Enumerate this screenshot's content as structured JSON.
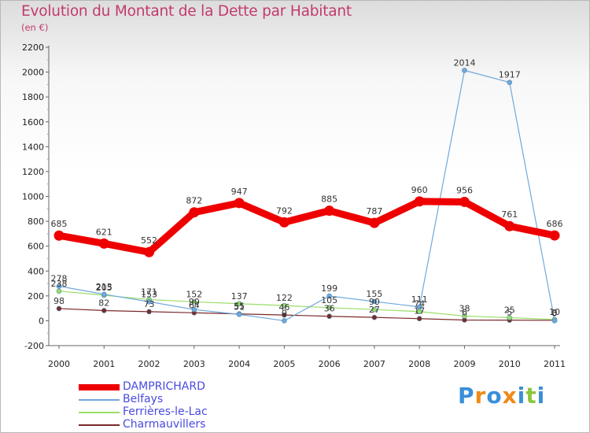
{
  "title": "Evolution du Montant de la Dette par Habitant",
  "subtitle": "(en €)",
  "logo": {
    "letters": [
      "P",
      "r",
      "o",
      "x",
      "i",
      "t",
      "i"
    ],
    "colors": [
      "#3a8fd8",
      "#f08a18",
      "#3a8fd8",
      "#f08a18",
      "#3a8fd8",
      "#8cc63f",
      "#3a8fd8"
    ]
  },
  "chart_data": {
    "type": "line",
    "title": "Evolution du Montant de la Dette par Habitant",
    "ylabel": "(en €)",
    "xlabel": "",
    "x": [
      "2000",
      "2001",
      "2002",
      "2003",
      "2004",
      "2005",
      "2006",
      "2007",
      "2008",
      "2009",
      "2010",
      "2011"
    ],
    "ylim": [
      -200,
      2200
    ],
    "yticks": [
      -200,
      0,
      200,
      400,
      600,
      800,
      1000,
      1200,
      1400,
      1600,
      1800,
      2000,
      2200
    ],
    "grid": false,
    "legend_position": "bottom-left",
    "series": [
      {
        "name": "DAMPRICHARD",
        "color": "#ee0000",
        "values": [
          685,
          621,
          552,
          872,
          947,
          792,
          885,
          787,
          960,
          956,
          761,
          686
        ],
        "labels": [
          "685",
          "621",
          "552",
          "872",
          "947",
          "792",
          "885",
          "787",
          "960",
          "956",
          "761",
          "686"
        ]
      },
      {
        "name": "Belfays",
        "color": "#6fa8dc",
        "values": [
          278,
          213,
          153,
          90,
          51,
          0,
          199,
          155,
          111,
          2014,
          1917,
          0
        ],
        "labels": [
          "278",
          "213",
          "153",
          "90",
          "51",
          "0",
          "199",
          "155",
          "111",
          "2014",
          "1917",
          "0"
        ]
      },
      {
        "name": "Ferrières-le-Lac",
        "color": "#99dd66",
        "values": [
          238,
          205,
          171,
          152,
          137,
          122,
          105,
          90,
          74,
          38,
          25,
          10
        ],
        "labels": [
          "238",
          "205",
          "171",
          "152",
          "137",
          "122",
          "105",
          "90",
          "74",
          "38",
          "25",
          "10"
        ]
      },
      {
        "name": "Charmauvillers",
        "color": "#7a2a2a",
        "values": [
          98,
          82,
          73,
          64,
          55,
          46,
          36,
          27,
          17,
          6,
          5,
          3
        ],
        "labels": [
          "98",
          "82",
          "73",
          "64",
          "55",
          "46",
          "36",
          "27",
          "17",
          "6",
          "5",
          "3"
        ]
      }
    ]
  }
}
